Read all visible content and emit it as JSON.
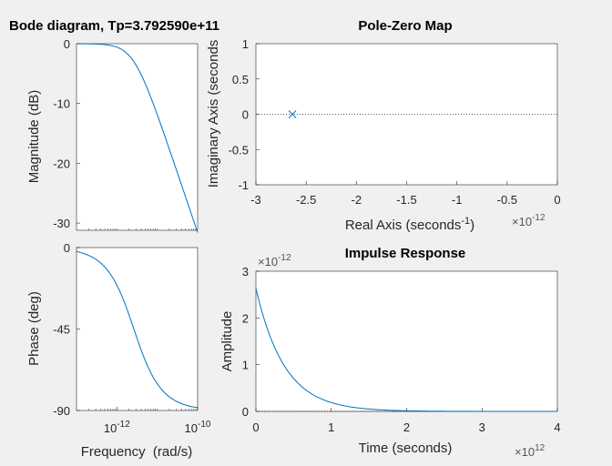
{
  "chart_data": [
    {
      "type": "line",
      "panel": "bode-magnitude",
      "title": "Bode diagram, Tp=3.792590e+11",
      "ylabel": "Magnitude (dB)",
      "xscale": "log",
      "xlim": [
        1e-13,
        1e-10
      ],
      "ylim": [
        -31.2,
        0
      ],
      "yticks": [
        0,
        -10,
        -20,
        -30
      ],
      "ytick_labels": [
        "0",
        "-10",
        "-20",
        "-30"
      ],
      "series": [
        {
          "color": "#0072bd",
          "pole_rad_s": 2.6367e-12
        }
      ]
    },
    {
      "type": "line",
      "panel": "bode-phase",
      "xlabel": "Frequency  (rad/s)",
      "ylabel": "Phase (deg)",
      "xscale": "log",
      "xlim": [
        1e-13,
        1e-10
      ],
      "ylim": [
        -90,
        0
      ],
      "xticks": [
        1e-12,
        1e-10
      ],
      "xtick_labels": [
        {
          "base": "10",
          "exp": "-12"
        },
        {
          "base": "10",
          "exp": "-10"
        }
      ],
      "yticks": [
        0,
        -45,
        -90
      ],
      "ytick_labels": [
        "0",
        "-45",
        "-90"
      ],
      "series": [
        {
          "color": "#0072bd",
          "pole_rad_s": 2.6367e-12
        }
      ]
    },
    {
      "type": "scatter",
      "panel": "pole-zero",
      "title": "Pole-Zero Map",
      "xlabel": {
        "text": "Real Axis (seconds",
        "sup": "-1",
        "close": ")"
      },
      "ylabel": "Imaginary Axis (seconds",
      "xlim": [
        -3,
        0
      ],
      "ylim": [
        -1,
        1
      ],
      "xticks": [
        -3,
        -2.5,
        -2,
        -1.5,
        -1,
        -0.5,
        0
      ],
      "xtick_labels": [
        "-3",
        "-2.5",
        "-2",
        "-1.5",
        "-1",
        "-0.5",
        "0"
      ],
      "yticks": [
        1,
        0.5,
        0,
        -0.5,
        -1
      ],
      "ytick_labels": [
        "1",
        "0.5",
        "0",
        "-0.5",
        "-1"
      ],
      "x_exponent": {
        "prefix": "×10",
        "exp": "-12"
      },
      "points": [
        {
          "x": -2.6367,
          "y": 0,
          "marker": "x",
          "color": "#0072bd"
        }
      ]
    },
    {
      "type": "line",
      "panel": "impulse",
      "title": "Impulse Response",
      "xlabel": "Time (seconds)",
      "ylabel": "Amplitude",
      "xlim": [
        0,
        4
      ],
      "ylim": [
        0,
        3
      ],
      "xticks": [
        0,
        1,
        2,
        3,
        4
      ],
      "xtick_labels": [
        "0",
        "1",
        "2",
        "3",
        "4"
      ],
      "yticks": [
        0,
        1,
        2,
        3
      ],
      "ytick_labels": [
        "0",
        "1",
        "2",
        "3"
      ],
      "x_exponent": {
        "prefix": "×10",
        "exp": "12"
      },
      "y_exponent": {
        "prefix": "×10",
        "exp": "-12"
      },
      "series": [
        {
          "color": "#0072bd",
          "initial_value": 2.6367,
          "decay_rate": 2.6367
        }
      ]
    }
  ]
}
